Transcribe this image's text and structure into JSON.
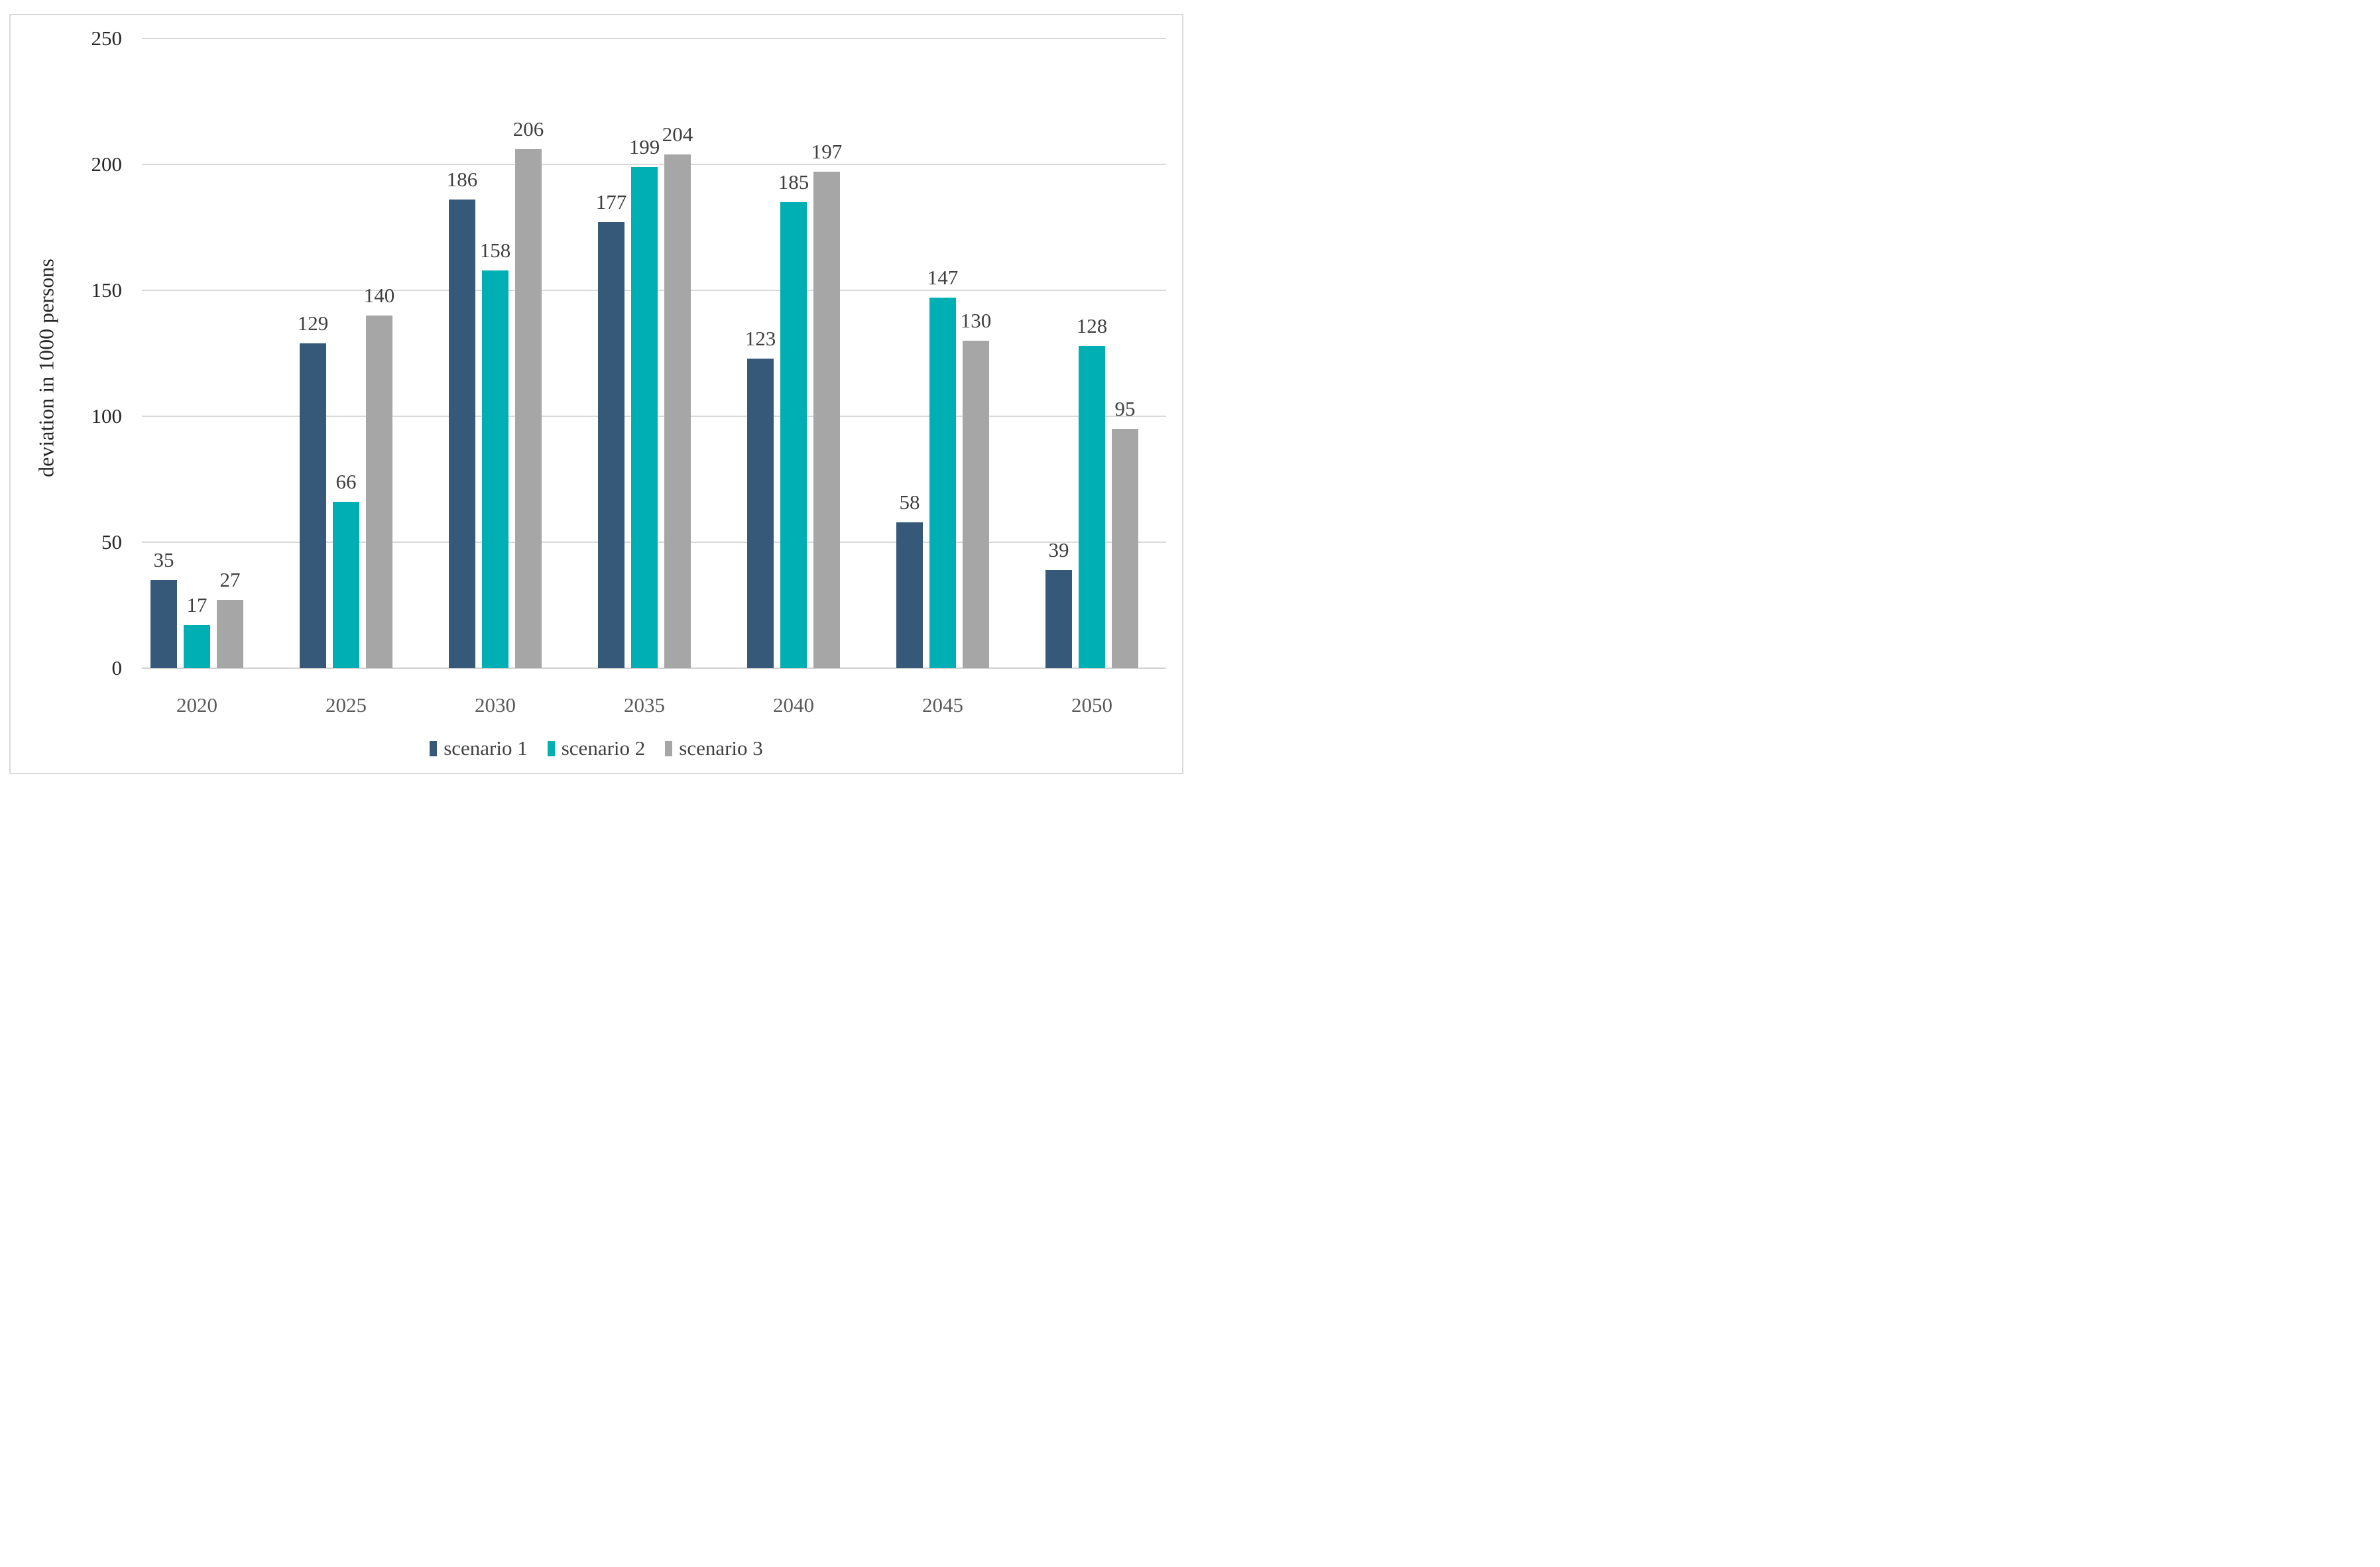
{
  "chart_data": {
    "type": "bar",
    "title": "",
    "xlabel": "",
    "ylabel": "deviation in 1000 persons",
    "categories": [
      "2020",
      "2025",
      "2030",
      "2035",
      "2040",
      "2045",
      "2050"
    ],
    "series": [
      {
        "name": "scenario 1",
        "color": "#36597A",
        "values": [
          35,
          129,
          186,
          177,
          123,
          58,
          39
        ]
      },
      {
        "name": "scenario 2",
        "color": "#00AFB4",
        "values": [
          17,
          66,
          158,
          199,
          185,
          147,
          128
        ]
      },
      {
        "name": "scenario 3",
        "color": "#A6A6A6",
        "values": [
          27,
          140,
          206,
          204,
          197,
          130,
          95
        ]
      }
    ],
    "ylim": [
      0,
      250
    ],
    "yticks": [
      0,
      50,
      100,
      150,
      200,
      250
    ],
    "grid": true,
    "data_labels": true,
    "legend_position": "bottom"
  },
  "style": {
    "background": "#FFFFFF",
    "figure_border_color": "#D9D9D9",
    "gridline_color": "#D9D9D9",
    "axis_line_color": "#D2D2D2",
    "data_label_color": "#404040",
    "y_tick_label_color": "#262626",
    "x_tick_label_color": "#595959",
    "legend_text_color": "#404040",
    "y_axis_title_color": "#262626"
  }
}
